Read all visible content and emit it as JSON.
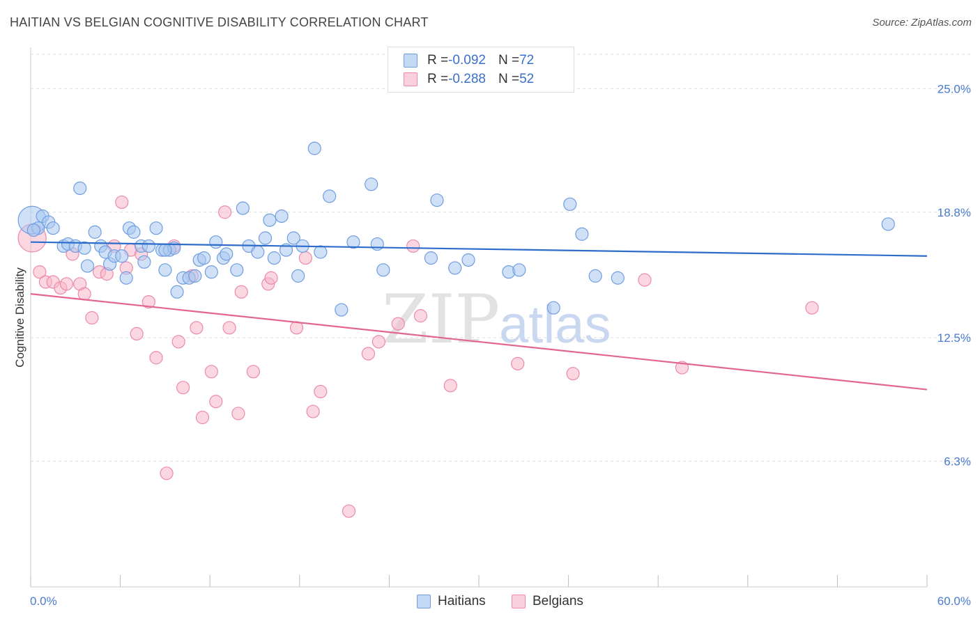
{
  "header": {
    "title": "HAITIAN VS BELGIAN COGNITIVE DISABILITY CORRELATION CHART",
    "source": "Source: ZipAtlas.com"
  },
  "legend": {
    "haitians": {
      "r_label": "R = ",
      "r_value": "-0.092",
      "n_label": "N = ",
      "n_value": "72"
    },
    "belgians": {
      "r_label": "R = ",
      "r_value": "-0.288",
      "n_label": "N = ",
      "n_value": "52"
    }
  },
  "bottom_legend": {
    "haitians": "Haitians",
    "belgians": "Belgians"
  },
  "watermark": {
    "zip": "ZIP",
    "atlas": "atlas"
  },
  "colors": {
    "haitians_fill": "#a9c8f0",
    "haitians_stroke": "#6f9de0",
    "haitians_line": "#2e6ccb",
    "belgians_fill": "#f7b6cb",
    "belgians_stroke": "#ec8aa9",
    "belgians_line": "#e3668f",
    "axis_text": "#4a7bd0"
  },
  "chart_data": {
    "type": "scatter",
    "title": "HAITIAN VS BELGIAN COGNITIVE DISABILITY CORRELATION CHART",
    "xlabel": "",
    "ylabel": "Cognitive Disability",
    "xlim": [
      0,
      60
    ],
    "ylim": [
      0,
      27
    ],
    "x_tick_labels": [
      "0.0%",
      "60.0%"
    ],
    "y_ticks": [
      6.3,
      12.5,
      18.8,
      25.0
    ],
    "y_tick_labels": [
      "6.3%",
      "12.5%",
      "18.8%",
      "25.0%"
    ],
    "grid": "horizontal dashed",
    "legend_position": "top-center",
    "series": [
      {
        "name": "Haitians",
        "trend": [
          [
            0,
            17.3
          ],
          [
            60,
            16.6
          ]
        ],
        "points": [
          [
            0.1,
            18.4
          ],
          [
            0.5,
            18.0
          ],
          [
            0.8,
            18.6
          ],
          [
            1.2,
            18.3
          ],
          [
            1.5,
            18.0
          ],
          [
            2.2,
            17.1
          ],
          [
            2.5,
            17.2
          ],
          [
            3.0,
            17.1
          ],
          [
            3.3,
            20.0
          ],
          [
            3.6,
            17.0
          ],
          [
            3.8,
            16.1
          ],
          [
            4.3,
            17.8
          ],
          [
            4.7,
            17.1
          ],
          [
            5.0,
            16.8
          ],
          [
            5.3,
            16.2
          ],
          [
            5.6,
            16.6
          ],
          [
            6.1,
            16.6
          ],
          [
            6.4,
            15.5
          ],
          [
            6.6,
            18.0
          ],
          [
            6.9,
            17.8
          ],
          [
            7.4,
            17.1
          ],
          [
            7.6,
            16.3
          ],
          [
            7.9,
            17.1
          ],
          [
            8.4,
            18.0
          ],
          [
            8.8,
            16.9
          ],
          [
            9.0,
            15.9
          ],
          [
            9.3,
            16.9
          ],
          [
            9.6,
            17.0
          ],
          [
            9.8,
            14.8
          ],
          [
            10.2,
            15.5
          ],
          [
            10.6,
            15.5
          ],
          [
            11.0,
            15.6
          ],
          [
            11.3,
            16.4
          ],
          [
            11.6,
            16.5
          ],
          [
            12.1,
            15.8
          ],
          [
            12.4,
            17.3
          ],
          [
            12.9,
            16.5
          ],
          [
            13.1,
            16.7
          ],
          [
            13.8,
            15.9
          ],
          [
            14.2,
            19.0
          ],
          [
            14.6,
            17.1
          ],
          [
            15.2,
            16.8
          ],
          [
            15.7,
            17.5
          ],
          [
            16.0,
            18.4
          ],
          [
            16.3,
            16.5
          ],
          [
            16.8,
            18.6
          ],
          [
            17.1,
            16.9
          ],
          [
            17.6,
            17.5
          ],
          [
            17.9,
            15.6
          ],
          [
            18.2,
            17.1
          ],
          [
            19.0,
            22.0
          ],
          [
            19.4,
            16.8
          ],
          [
            20.0,
            19.6
          ],
          [
            20.8,
            13.9
          ],
          [
            21.6,
            17.3
          ],
          [
            22.8,
            20.2
          ],
          [
            23.2,
            17.2
          ],
          [
            23.6,
            15.9
          ],
          [
            26.8,
            16.5
          ],
          [
            27.2,
            19.4
          ],
          [
            28.4,
            16.0
          ],
          [
            29.3,
            16.4
          ],
          [
            32.0,
            15.8
          ],
          [
            32.7,
            15.9
          ],
          [
            35.0,
            14.0
          ],
          [
            36.1,
            19.2
          ],
          [
            36.9,
            17.7
          ],
          [
            37.8,
            15.6
          ],
          [
            39.3,
            15.5
          ],
          [
            57.4,
            18.2
          ],
          [
            0.2,
            17.9
          ],
          [
            9.0,
            16.9
          ]
        ]
      },
      {
        "name": "Belgians",
        "trend": [
          [
            0,
            14.7
          ],
          [
            60,
            9.9
          ]
        ],
        "points": [
          [
            0.1,
            17.5
          ],
          [
            0.6,
            15.8
          ],
          [
            1.0,
            15.3
          ],
          [
            1.5,
            15.3
          ],
          [
            2.0,
            15.0
          ],
          [
            2.4,
            15.2
          ],
          [
            2.8,
            16.7
          ],
          [
            3.3,
            15.2
          ],
          [
            3.6,
            14.7
          ],
          [
            4.1,
            13.5
          ],
          [
            4.6,
            15.8
          ],
          [
            5.1,
            15.7
          ],
          [
            5.6,
            17.1
          ],
          [
            6.1,
            19.3
          ],
          [
            6.4,
            16.0
          ],
          [
            6.7,
            16.9
          ],
          [
            7.1,
            12.7
          ],
          [
            7.4,
            16.7
          ],
          [
            7.9,
            14.3
          ],
          [
            8.4,
            11.5
          ],
          [
            9.1,
            5.7
          ],
          [
            9.6,
            17.1
          ],
          [
            9.9,
            12.3
          ],
          [
            10.2,
            10.0
          ],
          [
            10.8,
            15.6
          ],
          [
            11.1,
            13.0
          ],
          [
            11.5,
            8.5
          ],
          [
            12.1,
            10.8
          ],
          [
            12.4,
            9.3
          ],
          [
            13.0,
            18.8
          ],
          [
            13.3,
            13.0
          ],
          [
            13.9,
            8.7
          ],
          [
            14.1,
            14.8
          ],
          [
            14.9,
            10.8
          ],
          [
            15.9,
            15.2
          ],
          [
            16.1,
            15.5
          ],
          [
            17.8,
            13.0
          ],
          [
            18.4,
            16.5
          ],
          [
            18.9,
            8.8
          ],
          [
            19.4,
            9.8
          ],
          [
            21.3,
            3.8
          ],
          [
            22.6,
            11.7
          ],
          [
            23.3,
            12.3
          ],
          [
            24.6,
            13.2
          ],
          [
            25.6,
            17.1
          ],
          [
            26.1,
            13.6
          ],
          [
            28.1,
            10.1
          ],
          [
            32.6,
            11.2
          ],
          [
            36.3,
            10.7
          ],
          [
            41.1,
            15.4
          ],
          [
            43.6,
            11.0
          ],
          [
            52.3,
            14.0
          ]
        ]
      }
    ]
  }
}
